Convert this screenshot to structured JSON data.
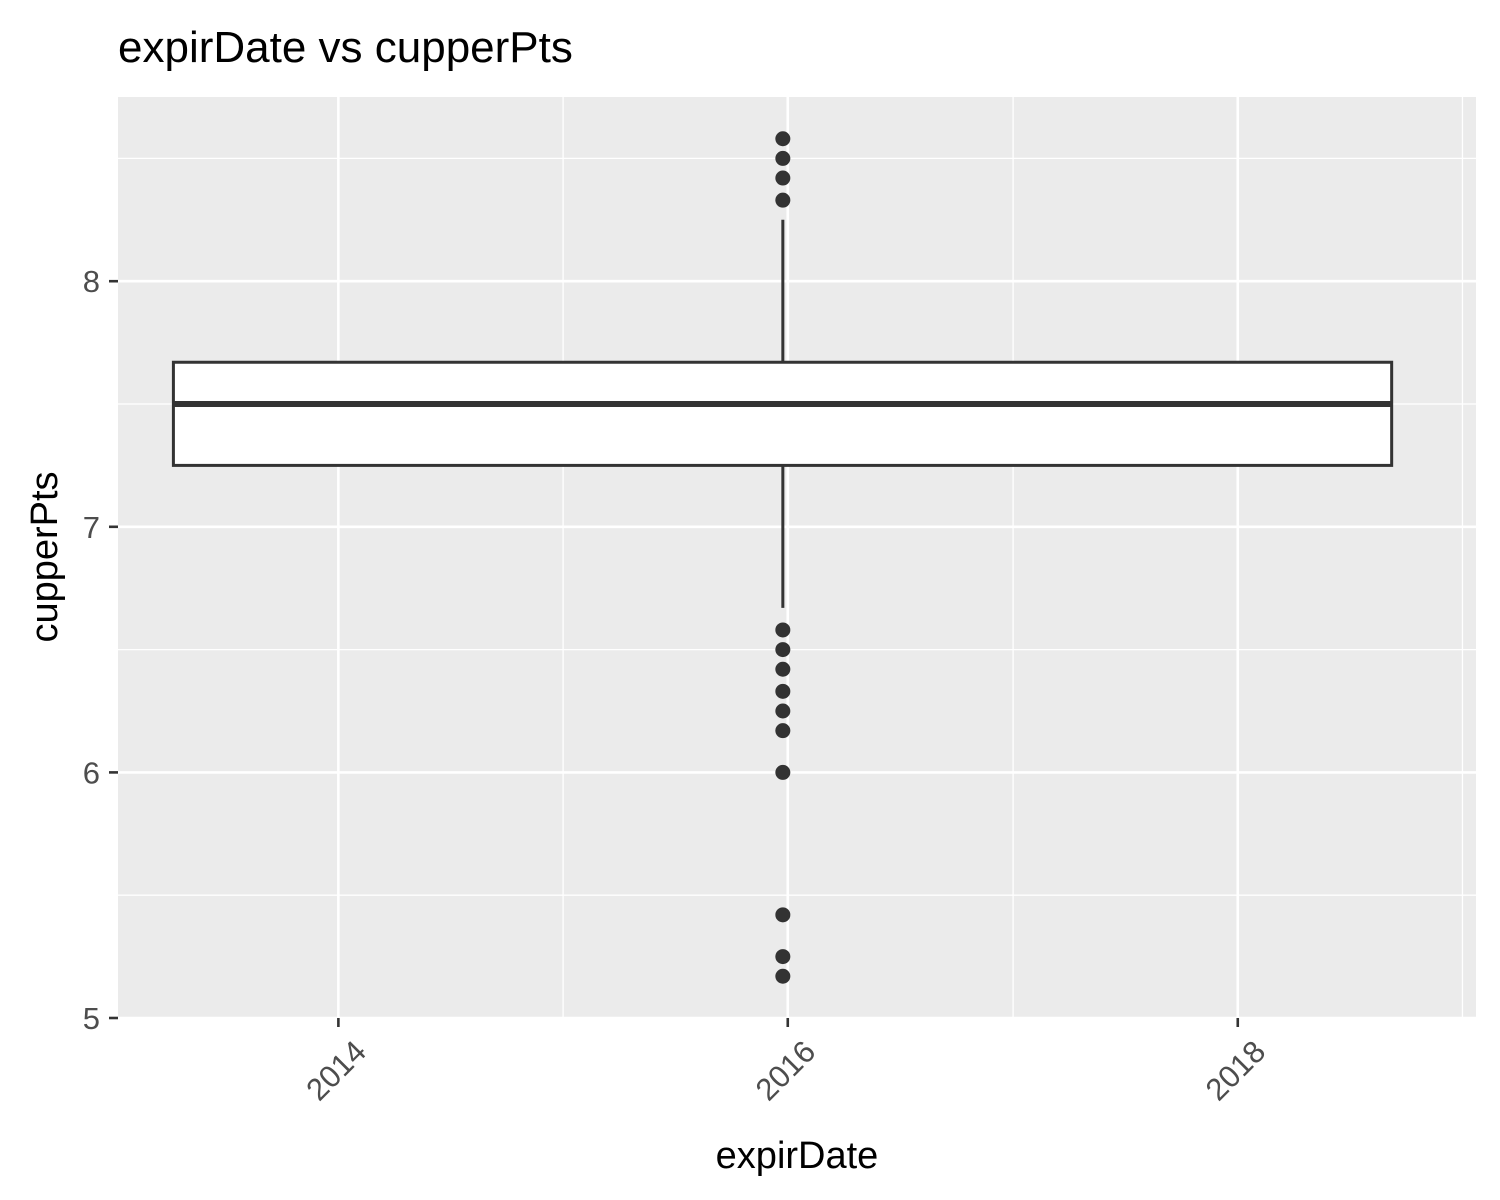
{
  "chart_data": {
    "type": "boxplot",
    "title": "expirDate vs cupperPts",
    "xlabel": "expirDate",
    "ylabel": "cupperPts",
    "x_axis": {
      "type": "date",
      "range": [
        "2013-01-08",
        "2019-01-23"
      ],
      "ticks": [
        {
          "value": "2014-01-01",
          "label": "2014"
        },
        {
          "value": "2016-01-01",
          "label": "2016"
        },
        {
          "value": "2018-01-01",
          "label": "2018"
        }
      ],
      "minor_ticks": [
        "2013-01-01",
        "2015-01-01",
        "2017-01-01",
        "2019-01-01"
      ]
    },
    "y_axis": {
      "range": [
        5,
        8.75
      ],
      "ticks": [
        {
          "value": 5,
          "label": "5"
        },
        {
          "value": 6,
          "label": "6"
        },
        {
          "value": 7,
          "label": "7"
        },
        {
          "value": 8,
          "label": "8"
        }
      ],
      "minor_ticks": [
        5.5,
        6.5,
        7.5,
        8.5
      ]
    },
    "box": {
      "x_center": "2015-12-24",
      "x_min": "2013-04-08",
      "x_max": "2018-09-08",
      "q1": 7.25,
      "median": 7.5,
      "q3": 7.67,
      "whisker_low": 6.67,
      "whisker_high": 8.25
    },
    "outliers": [
      8.58,
      8.5,
      8.42,
      8.33,
      6.58,
      6.5,
      6.42,
      6.33,
      6.25,
      6.17,
      6.0,
      5.42,
      5.25,
      5.17
    ],
    "grid": true,
    "colors": {
      "panel": "#ebebeb",
      "grid": "#ffffff",
      "box_outline": "#333333",
      "box_fill": "#ffffff",
      "points": "#333333",
      "ticks": "#333333",
      "tick_labels": "#4d4d4d"
    }
  }
}
